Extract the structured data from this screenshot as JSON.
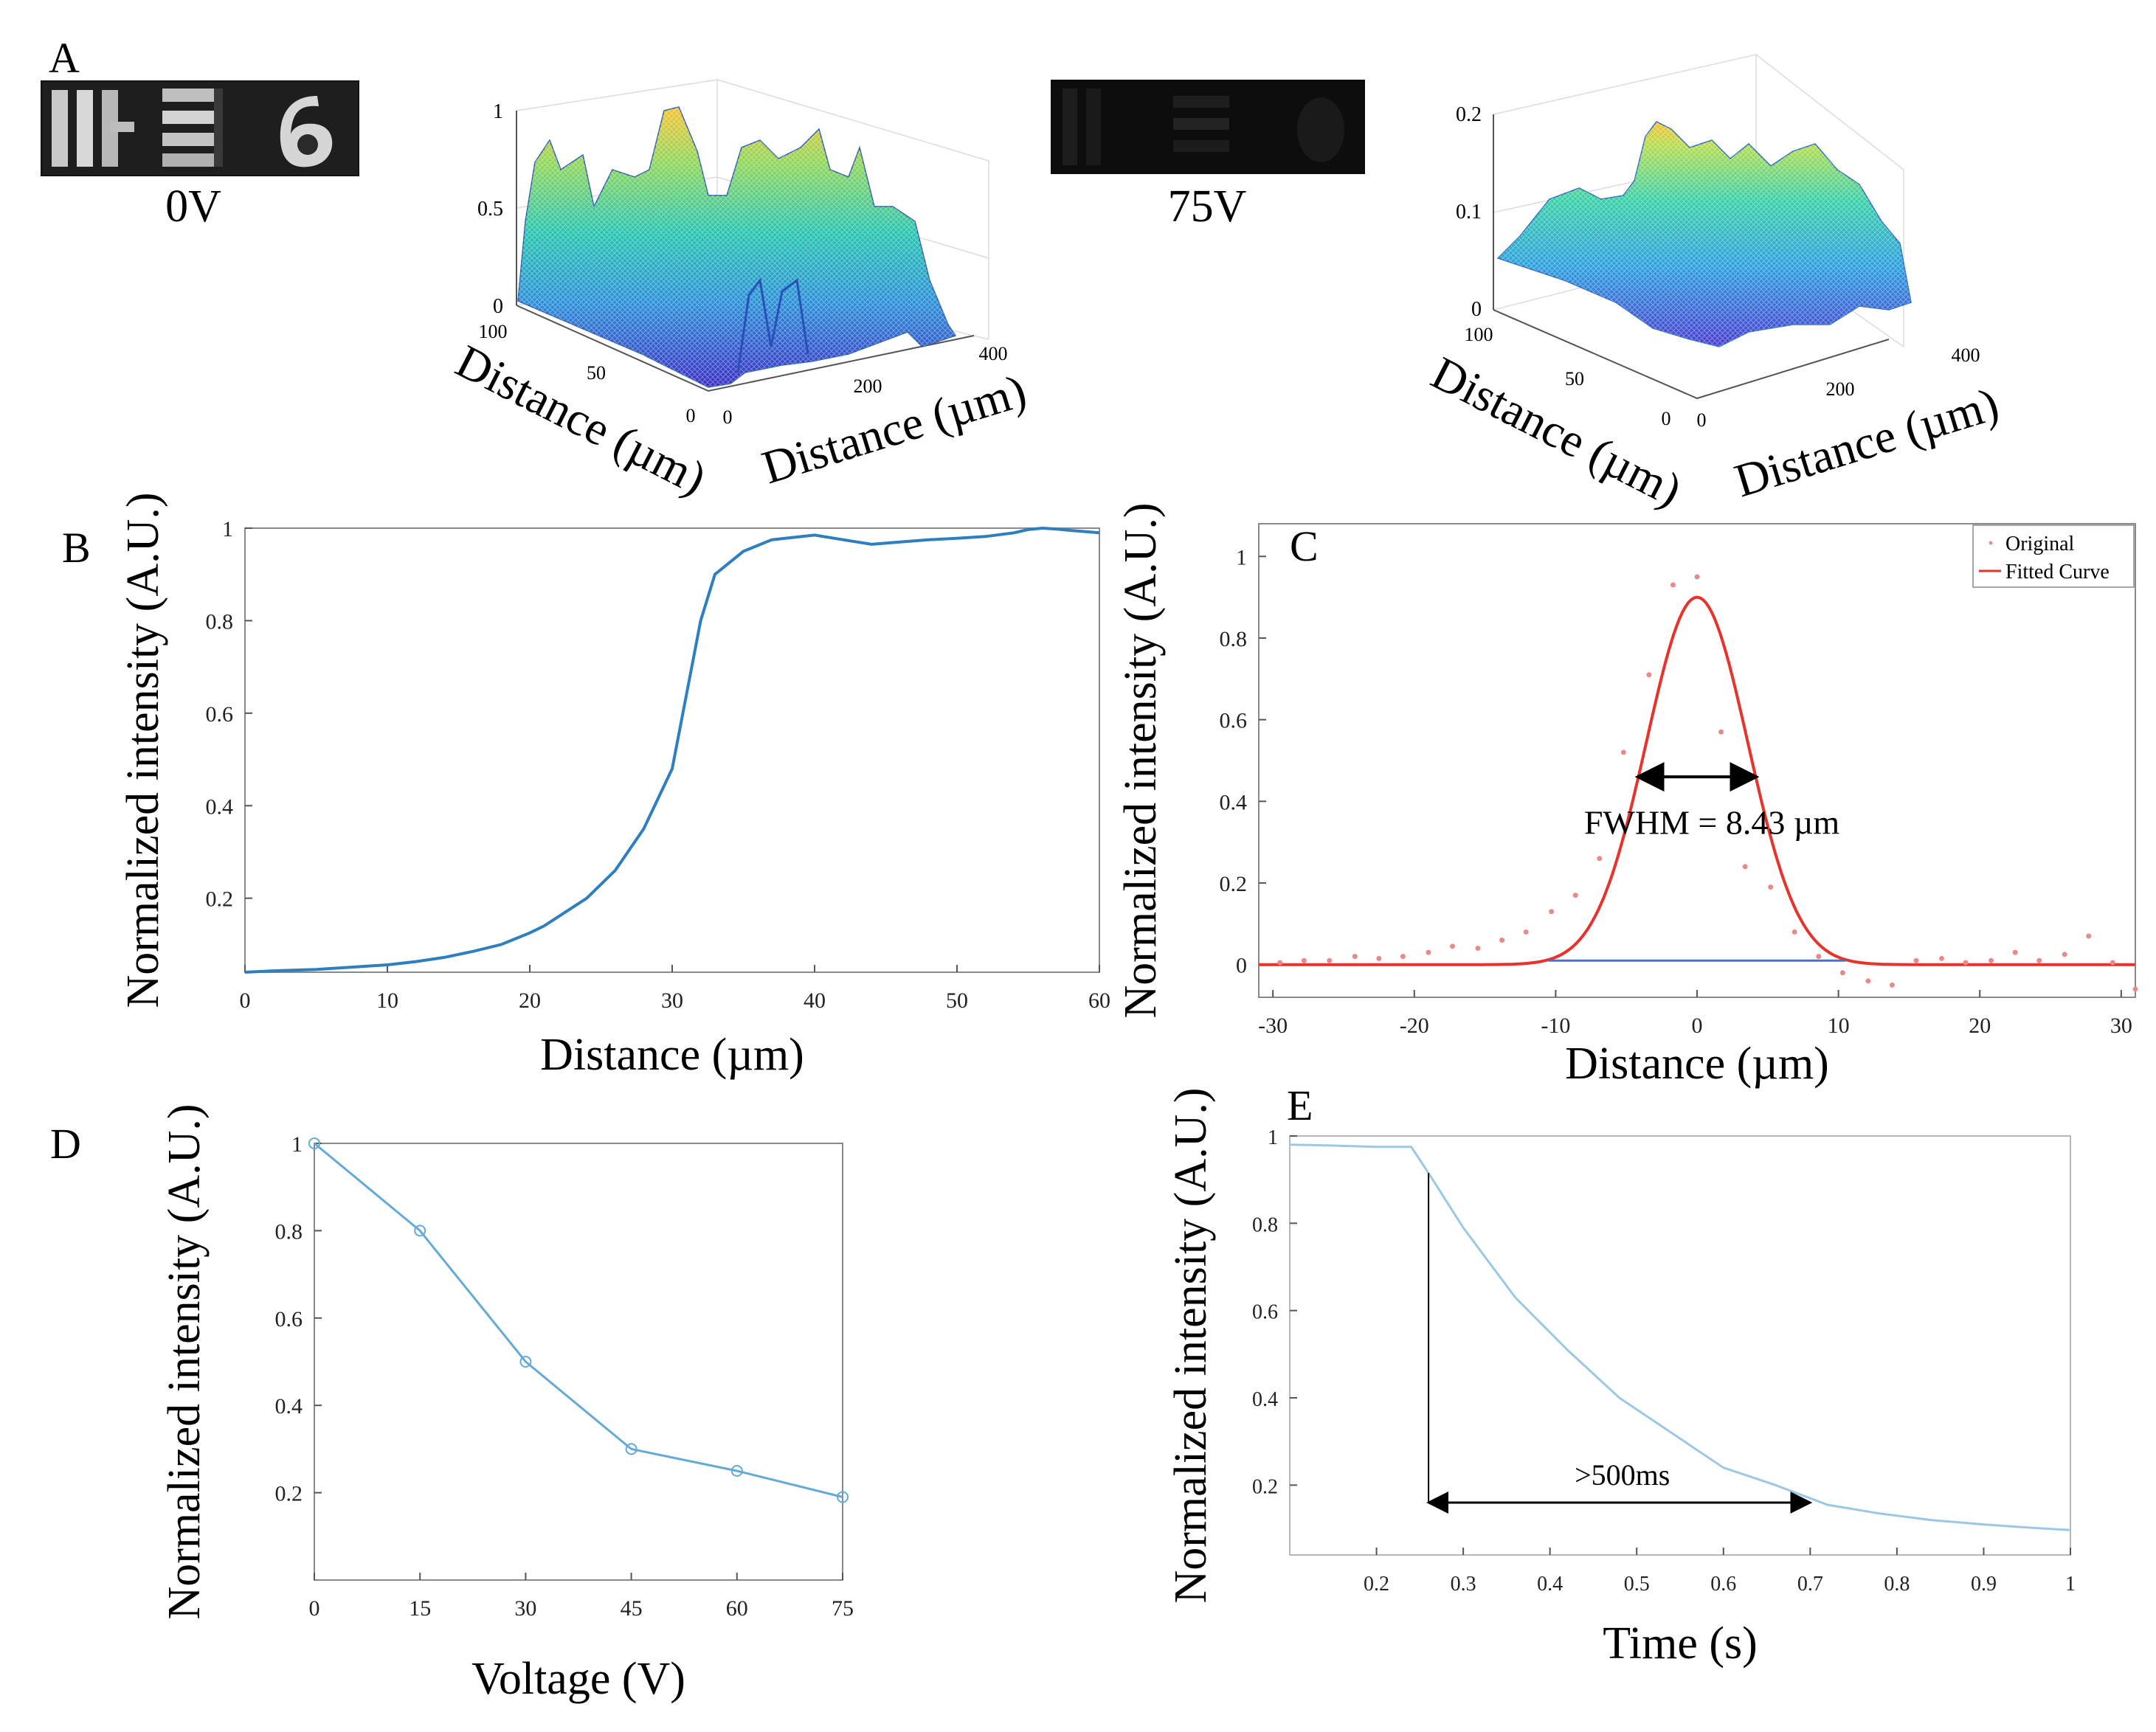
{
  "panel_labels": {
    "a": "A",
    "b": "B",
    "c": "C",
    "d": "D",
    "e": "E"
  },
  "images": {
    "img0_label": "0V",
    "img75_label": "75V"
  },
  "surfaces": {
    "s1": {
      "z_ticks": [
        "0",
        "0.5",
        "1"
      ],
      "y_ticks": [
        "100",
        "50",
        "0"
      ],
      "x_ticks": [
        "0",
        "200",
        "400"
      ],
      "y_label": "Distance (µm)",
      "x_label": "Distance (µm)"
    },
    "s2": {
      "z_ticks": [
        "0",
        "0.1",
        "0.2"
      ],
      "y_ticks": [
        "100",
        "50",
        "0"
      ],
      "x_ticks": [
        "0",
        "200",
        "400"
      ],
      "y_label": "Distance (µm)",
      "x_label": "Distance (µm)"
    }
  },
  "chart_data": [
    {
      "panel": "B",
      "type": "line",
      "xlabel": "Distance (µm)",
      "ylabel": "Normalized intensity (A.U.)",
      "xlim": [
        0,
        60
      ],
      "ylim": [
        0.04,
        1
      ],
      "xticks": [
        0,
        10,
        20,
        30,
        40,
        50,
        60
      ],
      "yticks": [
        0.2,
        0.4,
        0.6,
        0.8,
        1
      ],
      "color": "#2e7fbf",
      "x": [
        0,
        2,
        5,
        8,
        10,
        12,
        14,
        16,
        18,
        20,
        21,
        22,
        24,
        26,
        28,
        30,
        31,
        32,
        33,
        35,
        37,
        40,
        42,
        44,
        46,
        48,
        50,
        52,
        54,
        55,
        56,
        57,
        58,
        60
      ],
      "y": [
        0.04,
        0.043,
        0.046,
        0.052,
        0.056,
        0.063,
        0.072,
        0.085,
        0.1,
        0.125,
        0.14,
        0.16,
        0.2,
        0.26,
        0.35,
        0.48,
        0.64,
        0.8,
        0.9,
        0.95,
        0.975,
        0.985,
        0.975,
        0.965,
        0.97,
        0.975,
        0.978,
        0.982,
        0.99,
        0.997,
        1.0,
        0.998,
        0.995,
        0.99
      ]
    },
    {
      "panel": "C",
      "type": "scatter+line",
      "xlabel": "Distance (µm)",
      "ylabel": "Normalized intensity (A.U.)",
      "xlim": [
        -31,
        31
      ],
      "ylim": [
        -0.08,
        1.08
      ],
      "xticks": [
        -30,
        -20,
        -10,
        0,
        10,
        20,
        30
      ],
      "yticks": [
        0,
        0.2,
        0.4,
        0.6,
        0.8,
        1
      ],
      "legend": [
        "Original",
        "Fitted Curve"
      ],
      "annotation": "FWHM = 8.43 µm",
      "fit": {
        "amplitude": 0.9,
        "center": 0,
        "fwhm": 8.43,
        "color": "#e8322b"
      },
      "baseline": {
        "x": [
          -10.5,
          10.5
        ],
        "y": [
          0.01,
          0.01
        ],
        "color": "#4a72c4"
      },
      "arrow": {
        "x": [
          -4.2,
          4.2
        ],
        "y": 0.46
      },
      "points": {
        "color": "#e98a8a",
        "x": [
          -29.5,
          -27.8,
          -26,
          -24.2,
          -22.5,
          -20.8,
          -19,
          -17.3,
          -15.5,
          -13.8,
          -12.1,
          -10.3,
          -8.6,
          -6.9,
          -5.2,
          -3.4,
          -1.7,
          0,
          1.7,
          3.4,
          5.2,
          6.9,
          8.6,
          10.3,
          12.1,
          13.8,
          15.5,
          17.3,
          19,
          20.8,
          22.5,
          24.2,
          26,
          27.7,
          29.4,
          31
        ],
        "y": [
          0.005,
          0.01,
          0.01,
          0.02,
          0.015,
          0.02,
          0.03,
          0.045,
          0.04,
          0.06,
          0.08,
          0.13,
          0.17,
          0.26,
          0.52,
          0.71,
          0.93,
          0.95,
          0.57,
          0.24,
          0.19,
          0.08,
          0.02,
          -0.02,
          -0.04,
          -0.05,
          0.01,
          0.015,
          0.005,
          0.01,
          0.03,
          0.01,
          0.025,
          0.07,
          0.005,
          -0.06
        ]
      }
    },
    {
      "panel": "D",
      "type": "line",
      "xlabel": "Voltage (V)",
      "ylabel": "Normalized intensity (A.U.)",
      "xlim": [
        0,
        75
      ],
      "ylim": [
        0.0,
        1
      ],
      "xticks": [
        0,
        15,
        30,
        45,
        60,
        75
      ],
      "yticks": [
        0.2,
        0.4,
        0.6,
        0.8,
        1
      ],
      "color": "#64aad6",
      "x": [
        0,
        15,
        30,
        45,
        60,
        75
      ],
      "y": [
        1.0,
        0.8,
        0.5,
        0.3,
        0.25,
        0.19
      ]
    },
    {
      "panel": "E",
      "type": "line",
      "xlabel": "Time (s)",
      "ylabel": "Normalized intensity (A.U.)",
      "xlim": [
        0.1,
        1.0
      ],
      "ylim": [
        0.04,
        1
      ],
      "xticks": [
        0.2,
        0.3,
        0.4,
        0.5,
        0.6,
        0.7,
        0.8,
        0.9,
        1
      ],
      "yticks": [
        0.2,
        0.4,
        0.6,
        0.8,
        1
      ],
      "color": "#9bc8e4",
      "annotation": ">500ms",
      "marker_x": 0.26,
      "arrow": {
        "x": [
          0.26,
          0.7
        ],
        "y": 0.16
      },
      "x": [
        0.1,
        0.15,
        0.2,
        0.24,
        0.26,
        0.3,
        0.36,
        0.42,
        0.48,
        0.54,
        0.6,
        0.66,
        0.72,
        0.78,
        0.84,
        0.9,
        0.95,
        1.0
      ],
      "y": [
        0.98,
        0.978,
        0.975,
        0.975,
        0.915,
        0.79,
        0.63,
        0.51,
        0.4,
        0.32,
        0.24,
        0.2,
        0.155,
        0.135,
        0.12,
        0.11,
        0.103,
        0.097
      ]
    }
  ]
}
